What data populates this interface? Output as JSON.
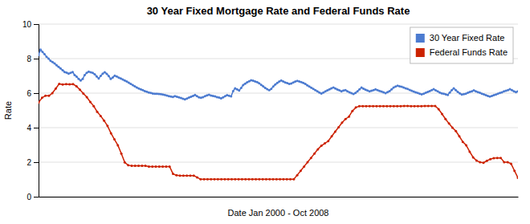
{
  "chart_data": {
    "type": "line",
    "title": "30 Year Fixed Mortgage Rate and Federal Funds Rate",
    "xlabel": "Date Jan 2000 - Oct 2008",
    "ylabel": "Rate",
    "ylim": [
      0,
      10
    ],
    "yticks": [
      0,
      2,
      4,
      6,
      8,
      10
    ],
    "grid": true,
    "legend": "upper right",
    "tick_labels": "y",
    "marker": "circle",
    "series": [
      {
        "name": "30 Year Fixed Rate",
        "color": "#4C7BD0",
        "values": [
          8.21,
          8.52,
          8.38,
          8.26,
          8.1,
          8.0,
          7.87,
          7.8,
          7.72,
          7.62,
          7.52,
          7.43,
          7.33,
          7.22,
          7.19,
          7.13,
          7.18,
          7.22,
          7.05,
          6.95,
          6.83,
          6.73,
          6.82,
          7.05,
          7.17,
          7.24,
          7.21,
          7.18,
          7.09,
          6.97,
          6.85,
          7.0,
          7.13,
          7.21,
          7.12,
          6.99,
          6.83,
          6.91,
          7.01,
          6.97,
          6.9,
          6.85,
          6.79,
          6.73,
          6.67,
          6.6,
          6.53,
          6.46,
          6.39,
          6.33,
          6.27,
          6.22,
          6.17,
          6.12,
          6.08,
          6.04,
          6.01,
          5.98,
          5.97,
          5.96,
          5.95,
          5.94,
          5.92,
          5.89,
          5.86,
          5.83,
          5.8,
          5.78,
          5.82,
          5.79,
          5.76,
          5.72,
          5.68,
          5.64,
          5.69,
          5.74,
          5.79,
          5.84,
          5.89,
          5.82,
          5.76,
          5.73,
          5.77,
          5.82,
          5.87,
          5.91,
          5.86,
          5.84,
          5.81,
          5.77,
          5.74,
          5.7,
          5.76,
          5.82,
          5.88,
          5.85,
          5.81,
          6.12,
          6.28,
          6.22,
          6.15,
          6.3,
          6.47,
          6.55,
          6.63,
          6.69,
          6.75,
          6.72,
          6.68,
          6.64,
          6.57,
          6.48,
          6.39,
          6.3,
          6.23,
          6.17,
          6.25,
          6.38,
          6.5,
          6.59,
          6.67,
          6.73,
          6.68,
          6.62,
          6.58,
          6.53,
          6.56,
          6.62,
          6.67,
          6.71,
          6.68,
          6.64,
          6.59,
          6.53,
          6.45,
          6.38,
          6.31,
          6.24,
          6.17,
          6.11,
          6.04,
          5.98,
          6.04,
          6.1,
          6.16,
          6.22,
          6.28,
          6.33,
          6.27,
          6.21,
          6.16,
          6.11,
          6.15,
          6.18,
          6.11,
          6.05,
          6.0,
          5.95,
          6.01,
          6.11,
          6.22,
          6.32,
          6.26,
          6.2,
          6.15,
          6.1,
          6.14,
          6.18,
          6.22,
          6.18,
          6.13,
          6.09,
          6.05,
          6.0,
          6.06,
          6.12,
          6.22,
          6.32,
          6.38,
          6.43,
          6.4,
          6.37,
          6.33,
          6.28,
          6.24,
          6.19,
          6.14,
          6.09,
          6.05,
          6.01,
          5.97,
          5.93,
          5.97,
          6.02,
          6.07,
          6.12,
          6.18,
          6.23,
          6.16,
          6.1,
          6.04,
          5.99,
          5.96,
          5.93,
          5.9,
          6.04,
          6.17,
          6.28,
          6.18,
          6.07,
          5.99,
          5.92,
          5.94,
          5.97,
          6.02,
          6.07,
          6.11,
          6.16,
          6.11,
          6.06,
          6.02,
          5.97,
          5.93,
          5.88,
          5.84,
          5.8,
          5.84,
          5.88,
          5.92,
          5.97,
          6.01,
          6.05,
          6.1,
          6.14,
          6.18,
          6.23,
          6.17,
          6.11,
          6.06,
          6.11
        ]
      },
      {
        "name": "Federal Funds Rate",
        "color": "#CC2200",
        "values": [
          5.45,
          5.73,
          5.85,
          5.85,
          6.0,
          6.27,
          6.54,
          6.5,
          6.52,
          6.51,
          6.52,
          6.4,
          6.2,
          5.98,
          5.77,
          5.49,
          5.25,
          4.92,
          4.68,
          4.41,
          4.1,
          3.68,
          3.32,
          2.98,
          2.5,
          1.99,
          1.82,
          1.79,
          1.79,
          1.79,
          1.79,
          1.79,
          1.75,
          1.75,
          1.75,
          1.75,
          1.75,
          1.75,
          1.75,
          1.32,
          1.24,
          1.22,
          1.22,
          1.22,
          1.22,
          1.22,
          1.12,
          1.01,
          1.01,
          1.01,
          1.01,
          1.01,
          1.01,
          1.01,
          1.01,
          1.01,
          1.01,
          1.01,
          1.01,
          1.01,
          1.01,
          1.01,
          1.01,
          1.01,
          1.01,
          1.01,
          1.01,
          1.01,
          1.01,
          1.01,
          1.01,
          1.01,
          1.01,
          1.01,
          1.01,
          1.25,
          1.5,
          1.75,
          2.0,
          2.25,
          2.5,
          2.75,
          2.95,
          3.09,
          3.22,
          3.5,
          3.77,
          4.02,
          4.29,
          4.5,
          4.64,
          4.97,
          5.17,
          5.25,
          5.25,
          5.25,
          5.25,
          5.25,
          5.25,
          5.25,
          5.25,
          5.25,
          5.25,
          5.25,
          5.25,
          5.25,
          5.26,
          5.26,
          5.25,
          5.25,
          5.25,
          5.25,
          5.26,
          5.26,
          5.26,
          5.26,
          5.07,
          4.79,
          4.5,
          4.24,
          4.0,
          3.8,
          3.5,
          3.18,
          2.98,
          2.61,
          2.28,
          2.09,
          2.0,
          1.97,
          2.08,
          2.18,
          2.23,
          2.25,
          2.25,
          2.0,
          2.0,
          1.91,
          1.5,
          1.09
        ]
      }
    ]
  }
}
